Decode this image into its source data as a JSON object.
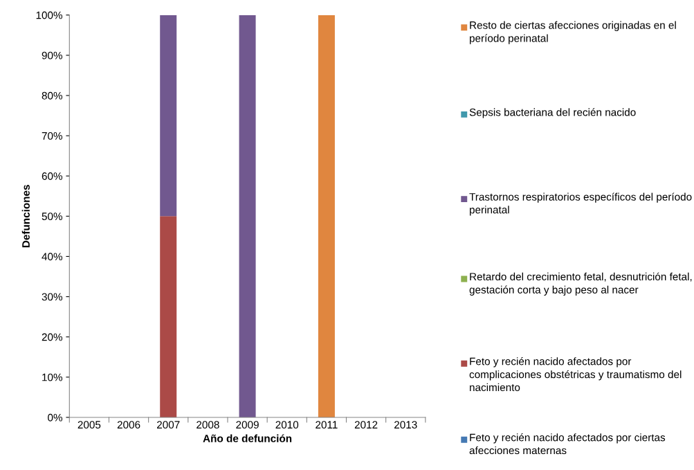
{
  "chart_data": {
    "type": "bar",
    "stacked": true,
    "xlabel": "Año de defunción",
    "ylabel": "Defunciones",
    "categories": [
      "2005",
      "2006",
      "2007",
      "2008",
      "2009",
      "2010",
      "2011",
      "2012",
      "2013"
    ],
    "series": [
      {
        "name": "Feto y recién nacido afectados por ciertas afecciones maternas",
        "color": "#4579b3",
        "values": [
          0,
          0,
          0,
          0,
          0,
          0,
          0,
          0,
          0
        ]
      },
      {
        "name": "Feto y recién nacido afectados por complicaciones obstétricas y traumatismo del nacimiento",
        "color": "#ab4a47",
        "values": [
          0,
          0,
          50,
          0,
          0,
          0,
          0,
          0,
          0
        ]
      },
      {
        "name": "Retardo del crecimiento fetal, desnutrición fetal, gestación corta y bajo peso al nacer",
        "color": "#8db04f",
        "values": [
          0,
          0,
          0,
          0,
          0,
          0,
          0,
          0,
          0
        ]
      },
      {
        "name": "Trastornos respiratorios específicos del período perinatal",
        "color": "#71588f",
        "values": [
          0,
          0,
          50,
          0,
          100,
          0,
          0,
          0,
          0
        ]
      },
      {
        "name": "Sepsis bacteriana del recién nacido",
        "color": "#4199ad",
        "values": [
          0,
          0,
          0,
          0,
          0,
          0,
          0,
          0,
          0
        ]
      },
      {
        "name": "Resto de ciertas afecciones originadas en el período perinatal",
        "color": "#e0863f",
        "values": [
          0,
          0,
          0,
          0,
          0,
          0,
          100,
          0,
          0
        ]
      }
    ],
    "ylim": [
      0,
      100
    ],
    "yticks": [
      {
        "value": 0,
        "label": "0%"
      },
      {
        "value": 10,
        "label": "10%"
      },
      {
        "value": 20,
        "label": "20%"
      },
      {
        "value": 30,
        "label": "30%"
      },
      {
        "value": 40,
        "label": "40%"
      },
      {
        "value": 50,
        "label": "50%"
      },
      {
        "value": 60,
        "label": "60%"
      },
      {
        "value": 70,
        "label": "70%"
      },
      {
        "value": 80,
        "label": "80%"
      },
      {
        "value": 90,
        "label": "90%"
      },
      {
        "value": 100,
        "label": "100%"
      }
    ],
    "grid": false,
    "legend": "right"
  }
}
